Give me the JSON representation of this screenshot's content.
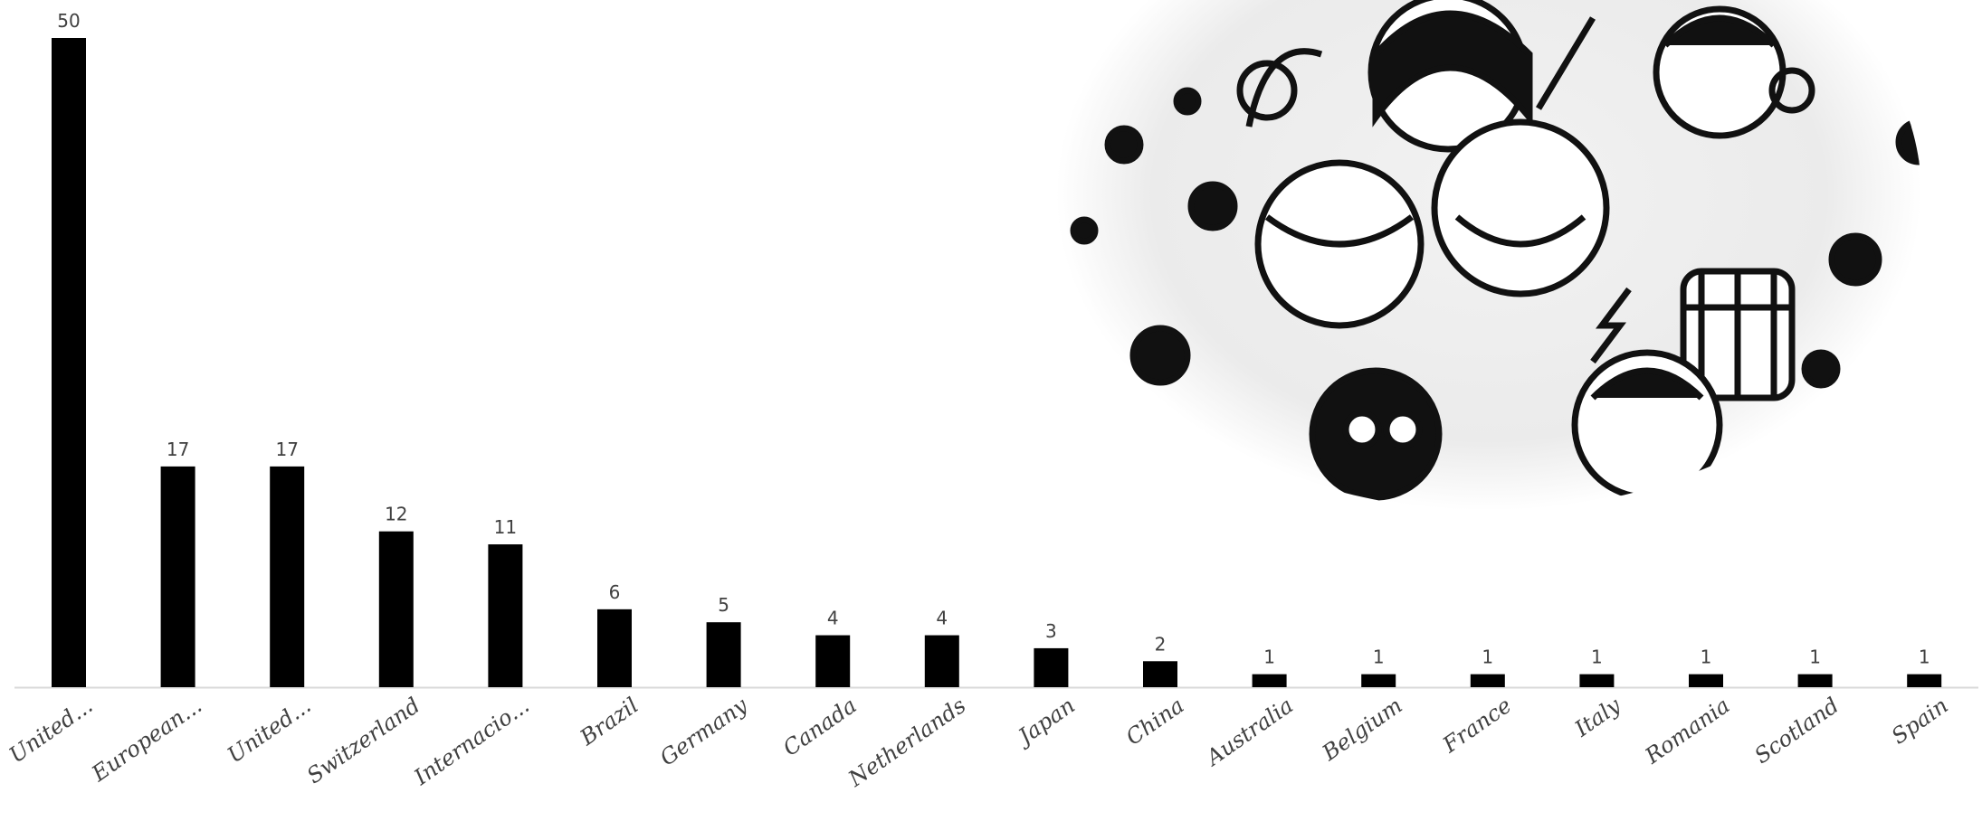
{
  "chart_data": {
    "type": "bar",
    "categories": [
      "United...",
      "European...",
      "United...",
      "Switzerland",
      "Internacio...",
      "Brazil",
      "Germany",
      "Canada",
      "Netherlands",
      "Japan",
      "China",
      "Australia",
      "Belgium",
      "France",
      "Italy",
      "Romania",
      "Scotland",
      "Spain"
    ],
    "values": [
      50,
      17,
      17,
      12,
      11,
      6,
      5,
      4,
      4,
      3,
      2,
      1,
      1,
      1,
      1,
      1,
      1,
      1
    ],
    "title": "",
    "xlabel": "",
    "ylabel": "",
    "ylim": [
      0,
      50
    ],
    "grid": false,
    "data_labels": true,
    "bar_color": "#000000",
    "axis_color": "#d9d9d9",
    "label_color": "#404040",
    "decoration": "doodle-illustration"
  }
}
